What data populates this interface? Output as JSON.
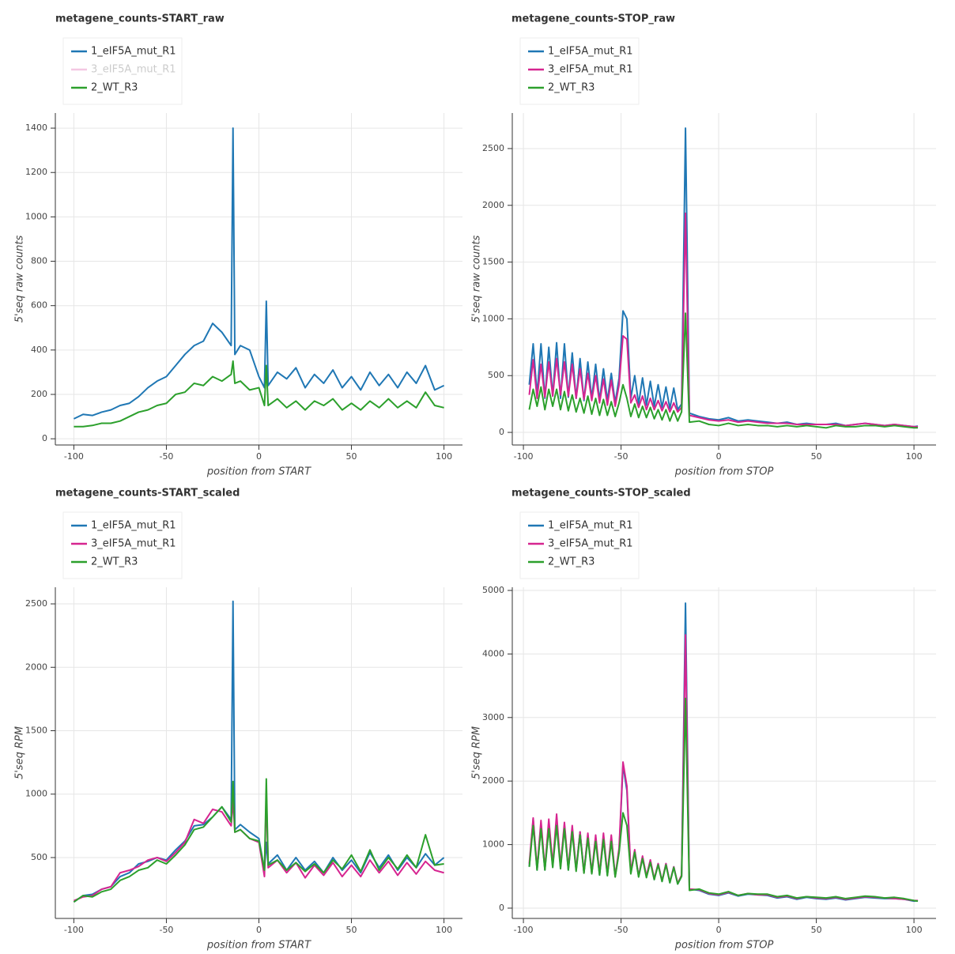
{
  "chart_data": [
    {
      "type": "line",
      "title": "metagene_counts-START_raw",
      "xlabel": "position from START",
      "ylabel": "5'seq raw counts",
      "grid": true,
      "legend": "top-left",
      "xlim": [
        -110,
        110
      ],
      "ylim": [
        -28,
        1468
      ],
      "xticks": [
        -100,
        -50,
        0,
        50,
        100
      ],
      "yticks": [
        0,
        200,
        400,
        600,
        800,
        1000,
        1200,
        1400
      ],
      "x": [
        -100,
        -95,
        -90,
        -85,
        -80,
        -75,
        -70,
        -65,
        -60,
        -55,
        -50,
        -45,
        -40,
        -35,
        -30,
        -25,
        -20,
        -15,
        -14,
        -13,
        -10,
        -5,
        0,
        3,
        4,
        5,
        10,
        15,
        20,
        25,
        30,
        35,
        40,
        45,
        50,
        55,
        60,
        65,
        70,
        75,
        80,
        85,
        90,
        95,
        100
      ],
      "series": [
        {
          "name": "1_eIF5A_mut_R1",
          "color": "#1f77b4",
          "values": [
            90,
            110,
            105,
            120,
            130,
            150,
            160,
            190,
            230,
            260,
            280,
            330,
            380,
            420,
            440,
            520,
            480,
            420,
            1400,
            380,
            420,
            400,
            280,
            230,
            620,
            240,
            300,
            270,
            320,
            230,
            290,
            250,
            310,
            230,
            280,
            220,
            300,
            240,
            290,
            230,
            300,
            250,
            330,
            220,
            240
          ]
        },
        {
          "name": "3_eIF5A_mut_R1",
          "color": "#d62590",
          "muted": true
        },
        {
          "name": "2_WT_R3",
          "color": "#2ca02c",
          "values": [
            55,
            55,
            60,
            70,
            70,
            80,
            100,
            120,
            130,
            150,
            160,
            200,
            210,
            250,
            240,
            280,
            260,
            290,
            350,
            250,
            260,
            220,
            230,
            150,
            330,
            150,
            180,
            140,
            170,
            130,
            170,
            150,
            180,
            130,
            160,
            130,
            170,
            140,
            180,
            140,
            170,
            140,
            210,
            150,
            140
          ]
        }
      ]
    },
    {
      "type": "line",
      "title": "metagene_counts-STOP_raw",
      "xlabel": "position from STOP",
      "ylabel": "5'seq raw counts",
      "grid": true,
      "legend": "top-left",
      "xlim": [
        -105.7,
        111.3
      ],
      "ylim": [
        -111,
        2813
      ],
      "xticks": [
        -100,
        -50,
        0,
        50,
        100
      ],
      "yticks": [
        0,
        500,
        1000,
        1500,
        2000,
        2500
      ],
      "x": [
        -97,
        -95,
        -93,
        -91,
        -89,
        -87,
        -85,
        -83,
        -81,
        -79,
        -77,
        -75,
        -73,
        -71,
        -69,
        -67,
        -65,
        -63,
        -61,
        -59,
        -57,
        -55,
        -53,
        -51,
        -49,
        -47,
        -45,
        -43,
        -41,
        -39,
        -37,
        -35,
        -33,
        -31,
        -29,
        -27,
        -25,
        -23,
        -21,
        -19,
        -17,
        -15,
        -10,
        -5,
        0,
        5,
        10,
        15,
        20,
        25,
        30,
        35,
        40,
        45,
        50,
        55,
        60,
        65,
        70,
        75,
        80,
        85,
        90,
        95,
        100,
        102
      ],
      "series": [
        {
          "name": "1_eIF5A_mut_R1",
          "color": "#1f77b4",
          "values": [
            420,
            780,
            330,
            780,
            300,
            750,
            320,
            790,
            300,
            780,
            310,
            700,
            300,
            650,
            280,
            620,
            300,
            600,
            280,
            560,
            280,
            520,
            260,
            480,
            1070,
            1000,
            300,
            500,
            250,
            480,
            240,
            450,
            230,
            420,
            220,
            400,
            210,
            390,
            200,
            250,
            2680,
            170,
            140,
            120,
            110,
            130,
            100,
            110,
            100,
            90,
            80,
            90,
            70,
            80,
            70,
            70,
            80,
            60,
            70,
            80,
            70,
            60,
            70,
            60,
            50,
            55
          ]
        },
        {
          "name": "3_eIF5A_mut_R1",
          "color": "#d62590",
          "values": [
            330,
            640,
            300,
            600,
            310,
            620,
            320,
            650,
            330,
            620,
            320,
            600,
            300,
            560,
            290,
            520,
            280,
            500,
            260,
            470,
            240,
            460,
            230,
            420,
            850,
            820,
            260,
            330,
            220,
            320,
            200,
            300,
            200,
            280,
            190,
            270,
            180,
            260,
            180,
            220,
            1930,
            150,
            130,
            110,
            100,
            110,
            90,
            100,
            90,
            80,
            80,
            80,
            70,
            70,
            70,
            70,
            70,
            60,
            70,
            80,
            70,
            60,
            70,
            60,
            50,
            50
          ]
        },
        {
          "name": "2_WT_R3",
          "color": "#2ca02c",
          "values": [
            200,
            380,
            230,
            400,
            200,
            380,
            230,
            380,
            200,
            360,
            190,
            330,
            180,
            300,
            170,
            320,
            160,
            300,
            150,
            290,
            150,
            270,
            140,
            260,
            420,
            300,
            140,
            250,
            130,
            230,
            130,
            220,
            120,
            200,
            110,
            200,
            100,
            190,
            100,
            180,
            1050,
            90,
            100,
            70,
            60,
            80,
            60,
            70,
            60,
            60,
            50,
            60,
            50,
            60,
            50,
            40,
            60,
            50,
            50,
            60,
            60,
            50,
            60,
            50,
            40,
            40
          ]
        }
      ]
    },
    {
      "type": "line",
      "title": "metagene_counts-START_scaled",
      "xlabel": "position from START",
      "ylabel": "5'seq RPM",
      "grid": true,
      "legend": "top-left",
      "xlim": [
        -110,
        110
      ],
      "ylim": [
        20,
        2631
      ],
      "xticks": [
        -100,
        -50,
        0,
        50,
        100
      ],
      "yticks": [
        500,
        1000,
        1500,
        2000,
        2500
      ],
      "x": [
        -100,
        -95,
        -90,
        -85,
        -80,
        -75,
        -70,
        -65,
        -60,
        -55,
        -50,
        -45,
        -40,
        -35,
        -30,
        -25,
        -20,
        -15,
        -14,
        -13,
        -10,
        -5,
        0,
        3,
        4,
        5,
        10,
        15,
        20,
        25,
        30,
        35,
        40,
        45,
        50,
        55,
        60,
        65,
        70,
        75,
        80,
        85,
        90,
        95,
        100
      ],
      "series": [
        {
          "name": "1_eIF5A_mut_R1",
          "color": "#1f77b4",
          "values": [
            150,
            200,
            210,
            250,
            270,
            350,
            380,
            450,
            470,
            500,
            480,
            560,
            630,
            750,
            760,
            820,
            900,
            800,
            2520,
            720,
            760,
            700,
            650,
            400,
            620,
            450,
            520,
            400,
            500,
            400,
            470,
            380,
            500,
            400,
            480,
            380,
            540,
            420,
            520,
            400,
            500,
            420,
            530,
            440,
            500
          ]
        },
        {
          "name": "3_eIF5A_mut_R1",
          "color": "#d62590",
          "values": [
            160,
            190,
            200,
            250,
            270,
            380,
            400,
            430,
            480,
            500,
            470,
            540,
            620,
            800,
            770,
            880,
            860,
            750,
            950,
            700,
            720,
            650,
            620,
            350,
            1020,
            420,
            480,
            380,
            460,
            340,
            440,
            360,
            460,
            350,
            440,
            350,
            480,
            380,
            470,
            360,
            460,
            370,
            470,
            400,
            380
          ]
        },
        {
          "name": "2_WT_R3",
          "color": "#2ca02c",
          "values": [
            150,
            200,
            190,
            230,
            250,
            320,
            350,
            400,
            420,
            480,
            450,
            520,
            600,
            720,
            740,
            820,
            900,
            780,
            1100,
            700,
            720,
            650,
            630,
            400,
            1120,
            440,
            480,
            400,
            460,
            390,
            450,
            380,
            480,
            410,
            520,
            390,
            560,
            400,
            500,
            410,
            520,
            420,
            680,
            440,
            450
          ]
        }
      ]
    },
    {
      "type": "line",
      "title": "metagene_counts-STOP_scaled",
      "xlabel": "position from STOP",
      "ylabel": "5'seq RPM",
      "grid": true,
      "legend": "top-left",
      "xlim": [
        -105.7,
        111.3
      ],
      "ylim": [
        -162,
        5050
      ],
      "xticks": [
        -100,
        -50,
        0,
        50,
        100
      ],
      "yticks": [
        0,
        1000,
        2000,
        3000,
        4000,
        5000
      ],
      "x": [
        -97,
        -95,
        -93,
        -91,
        -89,
        -87,
        -85,
        -83,
        -81,
        -79,
        -77,
        -75,
        -73,
        -71,
        -69,
        -67,
        -65,
        -63,
        -61,
        -59,
        -57,
        -55,
        -53,
        -51,
        -49,
        -47,
        -45,
        -43,
        -41,
        -39,
        -37,
        -35,
        -33,
        -31,
        -29,
        -27,
        -25,
        -23,
        -21,
        -19,
        -17,
        -15,
        -10,
        -5,
        0,
        5,
        10,
        15,
        20,
        25,
        30,
        35,
        40,
        45,
        50,
        55,
        60,
        65,
        70,
        75,
        80,
        85,
        90,
        95,
        100,
        102
      ],
      "series": [
        {
          "name": "1_eIF5A_mut_R1",
          "color": "#1f77b4",
          "values": [
            650,
            1400,
            600,
            1300,
            600,
            1350,
            650,
            1400,
            650,
            1300,
            600,
            1250,
            600,
            1200,
            560,
            1150,
            550,
            1100,
            520,
            1100,
            520,
            1100,
            500,
            900,
            2250,
            1850,
            550,
            900,
            500,
            800,
            500,
            750,
            450,
            700,
            420,
            700,
            400,
            650,
            380,
            500,
            4800,
            300,
            280,
            220,
            200,
            240,
            190,
            220,
            210,
            200,
            160,
            180,
            140,
            170,
            150,
            140,
            160,
            130,
            150,
            170,
            160,
            150,
            150,
            140,
            110,
            120
          ]
        },
        {
          "name": "3_eIF5A_mut_R1",
          "color": "#d62590",
          "values": [
            700,
            1420,
            620,
            1380,
            620,
            1400,
            680,
            1480,
            650,
            1350,
            620,
            1300,
            600,
            1200,
            560,
            1180,
            550,
            1150,
            540,
            1180,
            530,
            1150,
            500,
            950,
            2300,
            1920,
            560,
            920,
            500,
            820,
            500,
            760,
            460,
            700,
            430,
            700,
            410,
            650,
            390,
            520,
            4300,
            300,
            290,
            230,
            210,
            250,
            200,
            230,
            210,
            210,
            170,
            190,
            150,
            180,
            160,
            150,
            170,
            140,
            160,
            180,
            170,
            160,
            150,
            140,
            120,
            120
          ]
        },
        {
          "name": "2_WT_R3",
          "color": "#2ca02c",
          "values": [
            650,
            1300,
            600,
            1250,
            600,
            1250,
            640,
            1300,
            620,
            1250,
            600,
            1200,
            580,
            1150,
            550,
            1100,
            540,
            1050,
            520,
            1080,
            510,
            1050,
            490,
            880,
            1500,
            1300,
            540,
            880,
            490,
            780,
            480,
            720,
            450,
            680,
            420,
            680,
            400,
            640,
            380,
            500,
            3300,
            280,
            300,
            240,
            220,
            260,
            200,
            230,
            220,
            220,
            180,
            200,
            160,
            180,
            170,
            160,
            180,
            150,
            170,
            190,
            180,
            160,
            170,
            150,
            120,
            110
          ]
        }
      ]
    }
  ]
}
